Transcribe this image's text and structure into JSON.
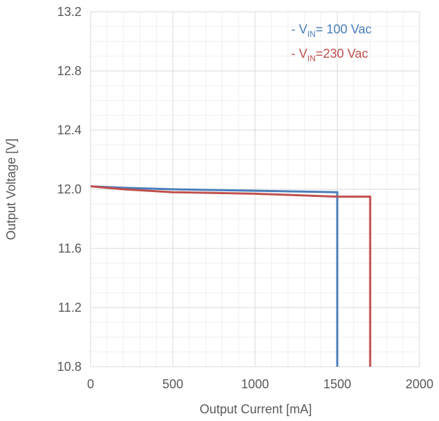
{
  "chart_data": {
    "type": "line",
    "title": "",
    "xlabel": "Output Current [mA]",
    "ylabel": "Output Voltage [V]",
    "xlim": [
      0,
      2000
    ],
    "ylim": [
      10.8,
      13.2
    ],
    "x_ticks": [
      0,
      500,
      1000,
      1500,
      2000
    ],
    "y_ticks": [
      10.8,
      11.2,
      11.6,
      12.0,
      12.4,
      12.8,
      13.2
    ],
    "x_tick_labels": [
      "0",
      "500",
      "1000",
      "1500",
      "2000"
    ],
    "y_tick_labels": [
      "10.8",
      "11.2",
      "11.6",
      "12.0",
      "12.4",
      "12.8",
      "13.2"
    ],
    "grid": true,
    "legend_position": "top-right",
    "series": [
      {
        "name_main": "V",
        "name_sub": "IN",
        "name_rest": "= 100 Vac",
        "color": "#4a7ebb",
        "x": [
          0,
          200,
          500,
          1000,
          1500,
          1500
        ],
        "y": [
          12.02,
          12.01,
          12.0,
          11.99,
          11.98,
          10.8
        ]
      },
      {
        "name_main": "V",
        "name_sub": "IN",
        "name_rest": "=230 Vac",
        "color": "#c0504d",
        "x": [
          0,
          200,
          500,
          1000,
          1500,
          1700,
          1700
        ],
        "y": [
          12.02,
          12.0,
          11.98,
          11.97,
          11.95,
          11.95,
          10.8
        ]
      }
    ]
  }
}
